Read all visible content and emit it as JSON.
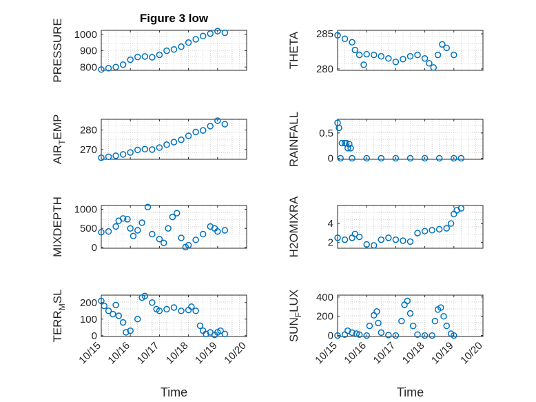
{
  "figure_title": "Figure 3 low",
  "chart_data": [
    {
      "type": "scatter",
      "name": "PRESSURE",
      "ylabel": [
        "PRESSURE"
      ],
      "xlim": [
        0,
        5
      ],
      "ylim": [
        780,
        1025
      ],
      "yticks": [
        800,
        900,
        1000
      ],
      "xticks": [],
      "title": "Figure 3 low",
      "x": [
        0,
        0.25,
        0.5,
        0.75,
        1,
        1.25,
        1.5,
        1.75,
        2,
        2.25,
        2.5,
        2.75,
        3,
        3.25,
        3.5,
        3.75,
        4,
        4.25
      ],
      "y": [
        785,
        793,
        800,
        815,
        845,
        862,
        865,
        860,
        875,
        900,
        908,
        925,
        950,
        970,
        990,
        1005,
        1020,
        1010
      ]
    },
    {
      "type": "scatter",
      "name": "THETA",
      "ylabel": [
        "THETA"
      ],
      "xlim": [
        0,
        5
      ],
      "ylim": [
        279.8,
        285.5
      ],
      "yticks": [
        280,
        285
      ],
      "xticks": [],
      "x": [
        0,
        0.25,
        0.5,
        0.6,
        0.75,
        0.9,
        1,
        1.25,
        1.5,
        1.75,
        2,
        2.25,
        2.5,
        2.75,
        3,
        3.15,
        3.3,
        3.45,
        3.6,
        3.75,
        4
      ],
      "y": [
        284.8,
        284.3,
        283.8,
        282.7,
        282,
        280.6,
        282.1,
        282,
        281.8,
        281.5,
        281,
        281.4,
        281.8,
        282,
        281.5,
        280.8,
        280.2,
        282,
        283.5,
        283,
        282
      ]
    },
    {
      "type": "scatter",
      "name": "AIR_TEMP",
      "ylabel": [
        "AIR",
        "T",
        "EMP"
      ],
      "xlim": [
        0,
        5
      ],
      "ylim": [
        265,
        285.5
      ],
      "yticks": [
        270,
        280
      ],
      "xticks": [],
      "x": [
        0,
        0.25,
        0.5,
        0.75,
        1,
        1.25,
        1.5,
        1.75,
        2,
        2.25,
        2.5,
        2.75,
        3,
        3.25,
        3.5,
        3.75,
        4,
        4.25
      ],
      "y": [
        265.8,
        266.3,
        266.8,
        267.5,
        268.5,
        269.8,
        270.2,
        270,
        271,
        272.5,
        273.8,
        275,
        277,
        279,
        279.8,
        282,
        284.8,
        283
      ]
    },
    {
      "type": "scatter",
      "name": "RAINFALL",
      "ylabel": [
        "RAINFALL"
      ],
      "xlim": [
        0,
        5
      ],
      "ylim": [
        -0.02,
        0.77
      ],
      "yticks": [
        0,
        0.5
      ],
      "xticks": [],
      "x": [
        0,
        0.05,
        0.1,
        0.15,
        0.25,
        0.3,
        0.35,
        0.4,
        0.45,
        0.5,
        1,
        1.5,
        2,
        2.5,
        3,
        3.5,
        4,
        4.25
      ],
      "y": [
        0.7,
        0.6,
        0,
        0.3,
        0.3,
        0.3,
        0.2,
        0.28,
        0.2,
        0,
        0,
        0,
        0,
        0,
        0,
        0,
        0,
        0
      ]
    },
    {
      "type": "scatter",
      "name": "MIXDEPTH",
      "ylabel": [
        "MIXDEPTH"
      ],
      "xlim": [
        0,
        5
      ],
      "ylim": [
        -20,
        1100
      ],
      "yticks": [
        0,
        500,
        1000
      ],
      "xticks": [],
      "x": [
        0,
        0.25,
        0.5,
        0.6,
        0.75,
        0.9,
        1,
        1.1,
        1.25,
        1.4,
        1.6,
        1.75,
        2,
        2.15,
        2.3,
        2.45,
        2.6,
        2.75,
        2.9,
        3,
        3.25,
        3.5,
        3.75,
        3.9,
        4,
        4.25
      ],
      "y": [
        400,
        420,
        550,
        700,
        760,
        740,
        500,
        300,
        450,
        650,
        1060,
        350,
        220,
        120,
        500,
        800,
        900,
        250,
        10,
        60,
        200,
        350,
        550,
        500,
        420,
        450
      ]
    },
    {
      "type": "scatter",
      "name": "H2OMIXRA",
      "ylabel": [
        "H2OMIXRA"
      ],
      "xlim": [
        0,
        5
      ],
      "ylim": [
        1.4,
        5.9
      ],
      "yticks": [
        2,
        4
      ],
      "xticks": [],
      "x": [
        0,
        0.25,
        0.5,
        0.6,
        0.75,
        1,
        1.25,
        1.5,
        1.75,
        2,
        2.25,
        2.5,
        2.75,
        3,
        3.25,
        3.5,
        3.75,
        3.9,
        4,
        4.1,
        4.25
      ],
      "y": [
        2.5,
        2.3,
        2.5,
        2.9,
        2.6,
        1.8,
        1.7,
        2.3,
        2.5,
        2.3,
        2.2,
        2.1,
        3,
        3.2,
        3.3,
        3.4,
        3.5,
        4,
        5,
        5.4,
        5.6
      ]
    },
    {
      "type": "scatter",
      "name": "TERR_MSL",
      "ylabel": [
        "TERR",
        "M",
        "SL"
      ],
      "xlim": [
        0,
        5
      ],
      "ylim": [
        -5,
        245
      ],
      "yticks": [
        0,
        100,
        200
      ],
      "xticks": [
        "10/15",
        "10/16",
        "10/17",
        "10/18",
        "10/19",
        "10/20"
      ],
      "xlabel": "Time",
      "x": [
        0,
        0.1,
        0.25,
        0.4,
        0.5,
        0.6,
        0.75,
        0.85,
        1,
        1.25,
        1.4,
        1.5,
        1.75,
        1.9,
        2,
        2.25,
        2.5,
        2.75,
        3,
        3.1,
        3.25,
        3.4,
        3.5,
        3.6,
        3.75,
        3.9,
        4,
        4.1,
        4.25
      ],
      "y": [
        210,
        180,
        150,
        130,
        185,
        120,
        80,
        20,
        30,
        100,
        230,
        240,
        200,
        160,
        150,
        160,
        170,
        150,
        155,
        175,
        150,
        60,
        30,
        10,
        20,
        5,
        20,
        30,
        10
      ]
    },
    {
      "type": "scatter",
      "name": "SUN_FLUX",
      "ylabel": [
        "SUN",
        "F",
        "LUX"
      ],
      "xlim": [
        0,
        5
      ],
      "ylim": [
        -10,
        420
      ],
      "yticks": [
        0,
        200,
        400
      ],
      "xticks": [
        "10/15",
        "10/16",
        "10/17",
        "10/18",
        "10/19",
        "10/20"
      ],
      "xlabel": "Time",
      "x": [
        0,
        0.25,
        0.35,
        0.5,
        0.65,
        0.75,
        1,
        1.1,
        1.25,
        1.35,
        1.4,
        1.5,
        1.75,
        2,
        2.2,
        2.3,
        2.4,
        2.5,
        2.6,
        2.75,
        3,
        3.25,
        3.35,
        3.45,
        3.55,
        3.65,
        3.75,
        3.9,
        4
      ],
      "y": [
        0,
        10,
        50,
        30,
        20,
        10,
        0,
        100,
        210,
        250,
        130,
        30,
        5,
        0,
        150,
        320,
        360,
        230,
        100,
        10,
        0,
        0,
        150,
        270,
        290,
        200,
        100,
        20,
        0
      ]
    }
  ]
}
